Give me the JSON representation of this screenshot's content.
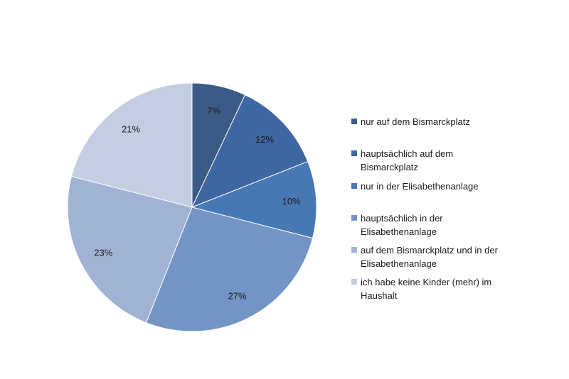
{
  "chart_data": {
    "type": "pie",
    "title": "",
    "categories": [
      "nur auf dem Bismarckplatz",
      "hauptsächlich auf dem Bismarckplatz",
      "nur in der Elisabethenanlage",
      "hauptsächlich in der Elisabethenanlage",
      "auf dem Bismarckplatz und in der Elisabethenanlage",
      "ich habe keine Kinder (mehr) im Haushalt"
    ],
    "values": [
      7,
      12,
      10,
      27,
      23,
      21
    ],
    "value_labels": [
      "7%",
      "12%",
      "10%",
      "27%",
      "23%",
      "21%"
    ],
    "colors": [
      "#3B5A86",
      "#3E66A0",
      "#4878B4",
      "#7395C6",
      "#A1B3D4",
      "#C4CEE2"
    ],
    "legend_position": "right"
  },
  "legend": {
    "items": [
      {
        "label_lines": [
          "nur auf dem Bismarckplatz"
        ]
      },
      {
        "label_lines": [
          "hauptsächlich auf dem",
          "Bismarckplatz"
        ]
      },
      {
        "label_lines": [
          "nur in der Elisabethenanlage"
        ]
      },
      {
        "label_lines": [
          "hauptsächlich in der",
          "Elisabethenanlage"
        ]
      },
      {
        "label_lines": [
          "auf dem Bismarckplatz und in der",
          "Elisabethenanlage"
        ]
      },
      {
        "label_lines": [
          "ich habe keine Kinder (mehr) im",
          "Haushalt"
        ]
      }
    ]
  }
}
